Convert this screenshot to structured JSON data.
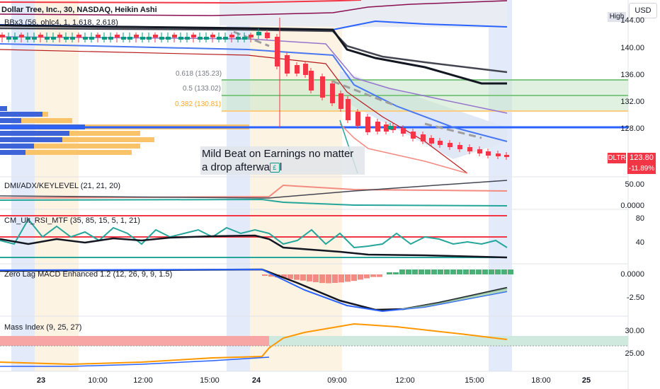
{
  "header": {
    "symbol_title": "Dollar Tree, Inc., 30, NASDAQ, Heikin Ashi",
    "indicator_bb": "BBx3 (56, ohlc4, 1, 1.618, 2.618)"
  },
  "currency_button": "USD",
  "high_tag": "High",
  "last_price": {
    "symbol": "DLTR",
    "price": "123.80",
    "change": "-11.89%"
  },
  "fib_levels": [
    {
      "label": "0.618 (135.23)",
      "color": "#787b86"
    },
    {
      "label": "0.5 (133.02)",
      "color": "#787b86"
    },
    {
      "label": "0.382 (130.81)",
      "color": "#ffa726"
    }
  ],
  "note": {
    "line1": "Mild Beat on Earnings no matter",
    "line2": "a drop afterwa",
    "line2_end": "l",
    "icon": "£"
  },
  "price_axis": [
    "140.00",
    "136.00",
    "132.00",
    "128.00"
  ],
  "price_axis_top": "144.00",
  "panes": {
    "dmi": {
      "title": "DMI/ADX/KEYLEVEL (21, 21, 20)",
      "axis": [
        "50.00",
        "0.0000"
      ]
    },
    "rsi": {
      "title": "CM_Ult_RSI_MTF (35, 85, 15, 5, 1, 21)",
      "axis": [
        "80",
        "40"
      ]
    },
    "macd": {
      "title": "Zero Lag MACD Enhanced 1.2 (12, 26, 9, 9, 1.5)",
      "axis": [
        "0.0000",
        "-2.50"
      ]
    },
    "mass": {
      "title": "Mass Index (9, 25, 27)",
      "axis": [
        "30.00",
        "25.00"
      ]
    }
  },
  "time_axis": [
    "23",
    "10:00",
    "12:00",
    "15:00",
    "24",
    "09:00",
    "12:00",
    "15:00",
    "18:00",
    "25"
  ],
  "colors": {
    "up": "#089981",
    "down": "#f23645",
    "bb_basis": "#131722",
    "bb_blue": "#2962ff",
    "fib_band": "#c8e6c9"
  }
}
